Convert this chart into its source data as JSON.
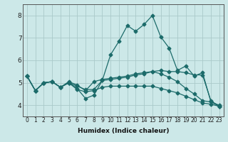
{
  "x": [
    0,
    1,
    2,
    3,
    4,
    5,
    6,
    7,
    8,
    9,
    10,
    11,
    12,
    13,
    14,
    15,
    16,
    17,
    18,
    19,
    20,
    21,
    22,
    23
  ],
  "line_spike": [
    5.3,
    4.65,
    5.0,
    5.05,
    4.8,
    5.0,
    4.75,
    4.3,
    4.45,
    5.1,
    6.25,
    6.85,
    7.55,
    7.3,
    7.6,
    8.0,
    7.05,
    6.55,
    5.55,
    5.75,
    5.3,
    5.45,
    4.15,
    4.0
  ],
  "line_flat": [
    5.3,
    4.65,
    5.0,
    5.05,
    4.8,
    5.05,
    4.9,
    4.65,
    5.05,
    5.15,
    5.2,
    5.25,
    5.3,
    5.4,
    5.45,
    5.5,
    5.55,
    5.5,
    5.5,
    5.45,
    5.35,
    5.35,
    4.2,
    3.95
  ],
  "line_mid": [
    5.3,
    4.65,
    5.0,
    5.05,
    4.8,
    5.0,
    4.85,
    4.7,
    4.7,
    5.1,
    5.15,
    5.2,
    5.25,
    5.35,
    5.4,
    5.5,
    5.4,
    5.25,
    5.05,
    4.75,
    4.5,
    4.2,
    4.15,
    3.95
  ],
  "line_decline": [
    5.3,
    4.65,
    5.0,
    5.05,
    4.8,
    5.0,
    4.7,
    4.6,
    4.65,
    4.8,
    4.85,
    4.85,
    4.85,
    4.85,
    4.85,
    4.85,
    4.75,
    4.65,
    4.55,
    4.4,
    4.25,
    4.1,
    4.05,
    3.95
  ],
  "line_color": "#1c6b6a",
  "bg_color": "#cce8e8",
  "grid_color": "#aacaca",
  "xlabel": "Humidex (Indice chaleur)",
  "ylim": [
    3.5,
    8.5
  ],
  "xlim": [
    -0.5,
    23.5
  ],
  "yticks": [
    4,
    5,
    6,
    7,
    8
  ],
  "xticks": [
    0,
    1,
    2,
    3,
    4,
    5,
    6,
    7,
    8,
    9,
    10,
    11,
    12,
    13,
    14,
    15,
    16,
    17,
    18,
    19,
    20,
    21,
    22,
    23
  ],
  "marker": "D",
  "markersize": 2.5,
  "linewidth": 0.9
}
